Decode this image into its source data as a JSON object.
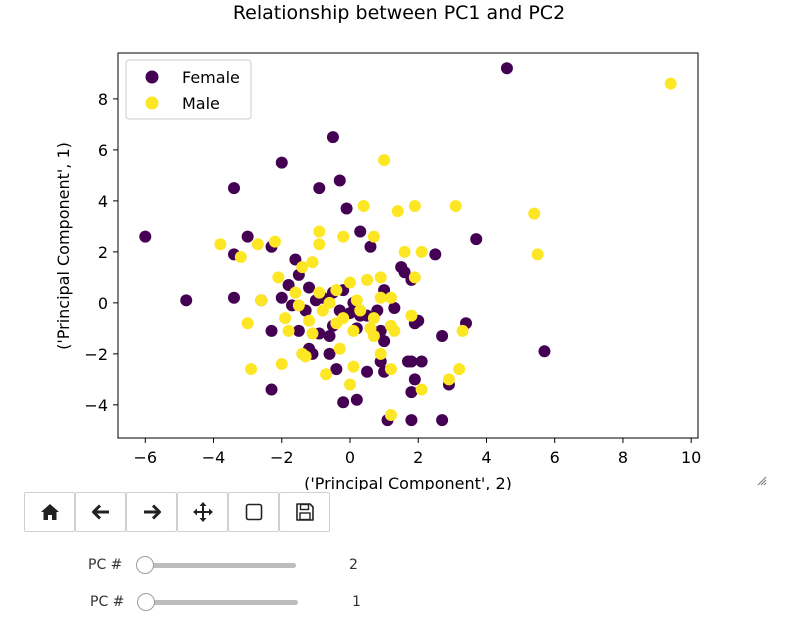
{
  "chart_data": {
    "type": "scatter",
    "title": "Relationship between PC1 and PC2",
    "xlabel": "('Principal Component', 2)",
    "ylabel": "('Principal Component', 1)",
    "xlim": [
      -6.8,
      10.2
    ],
    "ylim": [
      -5.3,
      9.8
    ],
    "xticks": [
      -6,
      -4,
      -2,
      0,
      2,
      4,
      6,
      8,
      10
    ],
    "yticks": [
      -4,
      -2,
      0,
      2,
      4,
      6,
      8
    ],
    "xtick_labels": [
      "−6",
      "−4",
      "−2",
      "0",
      "2",
      "4",
      "6",
      "8",
      "10"
    ],
    "ytick_labels": [
      "−4",
      "−2",
      "0",
      "2",
      "4",
      "6",
      "8"
    ],
    "grid": false,
    "legend_position": "top-left",
    "series": [
      {
        "name": "Female",
        "color": "#440154",
        "points": [
          [
            4.6,
            9.2
          ],
          [
            -0.5,
            6.5
          ],
          [
            -2.0,
            5.5
          ],
          [
            -3.4,
            4.5
          ],
          [
            -0.9,
            4.5
          ],
          [
            -0.3,
            4.8
          ],
          [
            -6.0,
            2.6
          ],
          [
            -3.0,
            2.6
          ],
          [
            -3.4,
            1.9
          ],
          [
            -2.3,
            2.2
          ],
          [
            -1.6,
            1.7
          ],
          [
            -0.1,
            3.7
          ],
          [
            0.3,
            2.8
          ],
          [
            0.6,
            2.2
          ],
          [
            3.7,
            2.5
          ],
          [
            2.5,
            1.9
          ],
          [
            -4.8,
            0.1
          ],
          [
            -3.4,
            0.2
          ],
          [
            -2.6,
            0.1
          ],
          [
            -2.0,
            0.2
          ],
          [
            -1.5,
            1.1
          ],
          [
            -1.2,
            0.6
          ],
          [
            -0.8,
            0.2
          ],
          [
            -0.5,
            0.4
          ],
          [
            1.5,
            1.4
          ],
          [
            1.6,
            1.2
          ],
          [
            1.8,
            0.9
          ],
          [
            0.1,
            0.0
          ],
          [
            0.3,
            -0.5
          ],
          [
            -1.7,
            -0.1
          ],
          [
            -1.3,
            -0.3
          ],
          [
            -1.0,
            0.1
          ],
          [
            -0.3,
            -0.3
          ],
          [
            0.8,
            -0.3
          ],
          [
            1.3,
            -0.2
          ],
          [
            2.0,
            -0.7
          ],
          [
            1.9,
            -0.8
          ],
          [
            -2.3,
            -1.1
          ],
          [
            -1.5,
            -1.1
          ],
          [
            -1.2,
            -1.8
          ],
          [
            -0.9,
            -1.2
          ],
          [
            -0.6,
            -1.3
          ],
          [
            -0.5,
            -0.9
          ],
          [
            0.2,
            -1.0
          ],
          [
            0.9,
            -1.1
          ],
          [
            1.0,
            -1.5
          ],
          [
            2.7,
            -1.3
          ],
          [
            3.4,
            -0.8
          ],
          [
            -1.1,
            -2.0
          ],
          [
            -0.6,
            -2.0
          ],
          [
            -0.4,
            -2.6
          ],
          [
            0.5,
            -2.7
          ],
          [
            1.0,
            -2.7
          ],
          [
            1.7,
            -2.3
          ],
          [
            1.8,
            -2.3
          ],
          [
            2.1,
            -2.3
          ],
          [
            0.9,
            -2.3
          ],
          [
            1.9,
            -3.0
          ],
          [
            -2.3,
            -3.4
          ],
          [
            1.8,
            -3.5
          ],
          [
            2.9,
            -3.2
          ],
          [
            -0.2,
            -3.9
          ],
          [
            0.2,
            -3.8
          ],
          [
            1.1,
            -4.6
          ],
          [
            1.8,
            -4.6
          ],
          [
            2.7,
            -4.6
          ],
          [
            5.7,
            -1.9
          ],
          [
            0.5,
            -0.5
          ],
          [
            -0.2,
            0.5
          ],
          [
            1.0,
            0.5
          ],
          [
            0.0,
            -0.4
          ],
          [
            -1.8,
            0.7
          ]
        ]
      },
      {
        "name": "Male",
        "color": "#fde725",
        "points": [
          [
            9.4,
            8.6
          ],
          [
            1.0,
            5.6
          ],
          [
            0.4,
            3.8
          ],
          [
            1.4,
            3.6
          ],
          [
            1.9,
            3.8
          ],
          [
            3.1,
            3.8
          ],
          [
            5.4,
            3.5
          ],
          [
            5.5,
            1.9
          ],
          [
            -3.8,
            2.3
          ],
          [
            -3.2,
            1.8
          ],
          [
            -2.7,
            2.3
          ],
          [
            -2.2,
            2.4
          ],
          [
            -0.9,
            2.8
          ],
          [
            -0.9,
            2.3
          ],
          [
            -0.2,
            2.6
          ],
          [
            0.7,
            2.6
          ],
          [
            1.6,
            2.0
          ],
          [
            2.1,
            2.0
          ],
          [
            -2.1,
            1.0
          ],
          [
            -1.4,
            1.4
          ],
          [
            -1.1,
            1.6
          ],
          [
            0.0,
            0.8
          ],
          [
            0.5,
            0.9
          ],
          [
            0.9,
            1.0
          ],
          [
            1.9,
            1.0
          ],
          [
            -2.6,
            0.1
          ],
          [
            -1.6,
            0.4
          ],
          [
            -0.9,
            0.4
          ],
          [
            -0.4,
            0.5
          ],
          [
            0.2,
            0.1
          ],
          [
            0.9,
            0.2
          ],
          [
            1.2,
            0.2
          ],
          [
            -1.5,
            -0.1
          ],
          [
            -1.9,
            -0.6
          ],
          [
            -1.2,
            -0.7
          ],
          [
            -0.8,
            -0.3
          ],
          [
            -0.2,
            -0.6
          ],
          [
            0.3,
            -0.3
          ],
          [
            0.7,
            -0.6
          ],
          [
            1.2,
            -0.9
          ],
          [
            1.8,
            -0.5
          ],
          [
            -3.0,
            -0.8
          ],
          [
            -1.8,
            -1.1
          ],
          [
            -1.1,
            -1.2
          ],
          [
            -0.4,
            -0.8
          ],
          [
            0.1,
            -1.1
          ],
          [
            0.7,
            -1.3
          ],
          [
            1.3,
            -1.1
          ],
          [
            3.3,
            -1.1
          ],
          [
            -2.0,
            -2.4
          ],
          [
            -1.3,
            -2.1
          ],
          [
            -0.3,
            -1.8
          ],
          [
            0.1,
            -2.5
          ],
          [
            0.9,
            -2.0
          ],
          [
            1.2,
            -2.6
          ],
          [
            -2.9,
            -2.6
          ],
          [
            -0.7,
            -2.8
          ],
          [
            0.0,
            -3.2
          ],
          [
            2.1,
            -3.4
          ],
          [
            2.9,
            -3.0
          ],
          [
            3.2,
            -2.6
          ],
          [
            1.2,
            -4.4
          ],
          [
            -1.4,
            -2.0
          ],
          [
            -0.6,
            0.0
          ],
          [
            0.6,
            -1.0
          ]
        ]
      }
    ]
  },
  "toolbar": {
    "buttons": [
      {
        "name": "home",
        "icon": "home-icon"
      },
      {
        "name": "back",
        "icon": "arrow-left-icon"
      },
      {
        "name": "forward",
        "icon": "arrow-right-icon"
      },
      {
        "name": "pan",
        "icon": "move-icon"
      },
      {
        "name": "zoom",
        "icon": "zoom-rect-icon"
      },
      {
        "name": "save",
        "icon": "save-icon"
      }
    ]
  },
  "sliders": [
    {
      "label": "PC #",
      "value": "2",
      "fraction": 0.0
    },
    {
      "label": "PC #",
      "value": "1",
      "fraction": 0.0
    }
  ]
}
